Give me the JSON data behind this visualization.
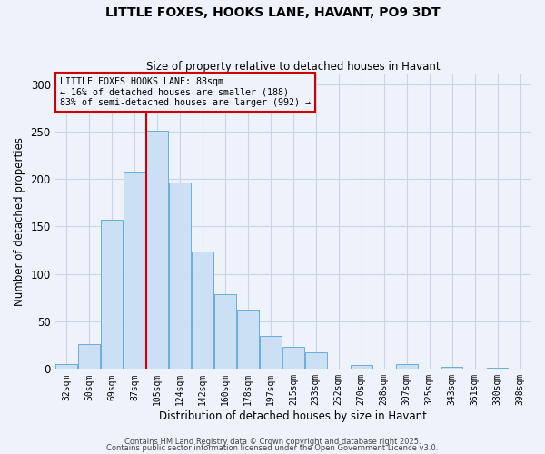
{
  "title": "LITTLE FOXES, HOOKS LANE, HAVANT, PO9 3DT",
  "subtitle": "Size of property relative to detached houses in Havant",
  "xlabel": "Distribution of detached houses by size in Havant",
  "ylabel": "Number of detached properties",
  "bar_labels": [
    "32sqm",
    "50sqm",
    "69sqm",
    "87sqm",
    "105sqm",
    "124sqm",
    "142sqm",
    "160sqm",
    "178sqm",
    "197sqm",
    "215sqm",
    "233sqm",
    "252sqm",
    "270sqm",
    "288sqm",
    "307sqm",
    "325sqm",
    "343sqm",
    "361sqm",
    "380sqm",
    "398sqm"
  ],
  "bar_values": [
    5,
    26,
    157,
    208,
    251,
    196,
    124,
    79,
    62,
    35,
    23,
    18,
    0,
    4,
    0,
    5,
    0,
    2,
    0,
    1,
    0
  ],
  "bar_color": "#cce0f5",
  "bar_edge_color": "#6aaed6",
  "vline_color": "#cc0000",
  "annotation_text": "LITTLE FOXES HOOKS LANE: 88sqm\n← 16% of detached houses are smaller (188)\n83% of semi-detached houses are larger (992) →",
  "annotation_box_edge": "#cc0000",
  "ylim": [
    0,
    310
  ],
  "yticks": [
    0,
    50,
    100,
    150,
    200,
    250,
    300
  ],
  "footer1": "Contains HM Land Registry data © Crown copyright and database right 2025.",
  "footer2": "Contains public sector information licensed under the Open Government Licence v3.0.",
  "bg_color": "#eef2fb",
  "grid_color": "#c8d4e8"
}
